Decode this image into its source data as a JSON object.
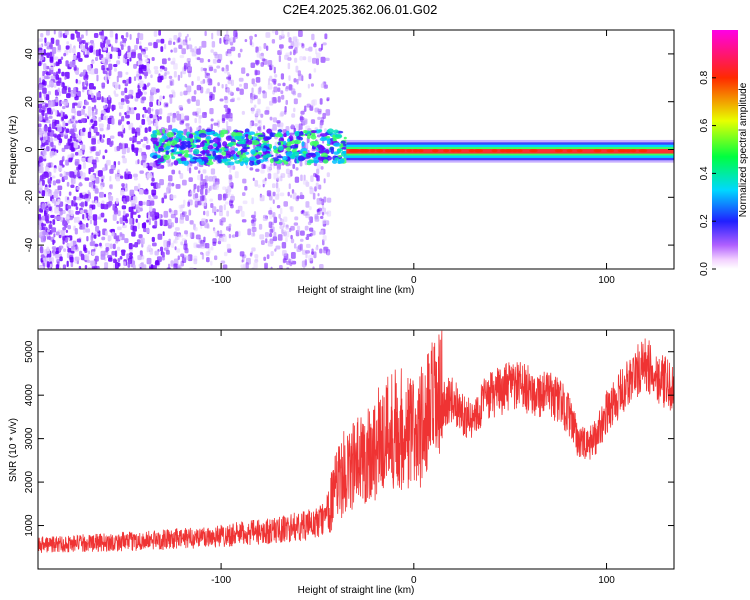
{
  "title": "C2E4.2025.362.06.01.G02",
  "chart_data": [
    {
      "type": "heatmap",
      "name": "spectrogram",
      "xlabel": "Height of straight line (km)",
      "ylabel": "Frequency (Hz)",
      "xlim": [
        -195,
        135
      ],
      "ylim": [
        -50,
        50
      ],
      "xticks": [
        -100,
        0,
        100
      ],
      "yticks": [
        -40,
        -20,
        0,
        20,
        40
      ],
      "colorbar": {
        "label": "Normalized spectral amplitude",
        "range": [
          0,
          1
        ],
        "ticks": [
          "0.0",
          "0.2",
          "0.4",
          "0.6",
          "0.8"
        ]
      },
      "description": "Scattered low-amplitude purple noise for heights below about -45 km, a concentrated signal band near 0 Hz that strengthens from -130 km upward, becoming a continuous narrow high-amplitude line from about -35 km to 135 km."
    },
    {
      "type": "line",
      "name": "snr",
      "xlabel": "Height of straight line (km)",
      "ylabel": "SNR (10 * v/v)",
      "xlim": [
        -195,
        135
      ],
      "ylim": [
        0,
        5500
      ],
      "xticks": [
        -100,
        0,
        100
      ],
      "yticks": [
        1000,
        2000,
        3000,
        4000,
        5000
      ],
      "color": "#ef3333",
      "series": [
        {
          "name": "SNR",
          "x": [
            -195,
            -180,
            -160,
            -140,
            -120,
            -100,
            -80,
            -70,
            -60,
            -50,
            -45,
            -40,
            -35,
            -30,
            -25,
            -20,
            -15,
            -10,
            -5,
            0,
            5,
            10,
            15,
            20,
            25,
            30,
            35,
            40,
            45,
            50,
            55,
            60,
            65,
            70,
            75,
            80,
            85,
            90,
            95,
            100,
            105,
            110,
            115,
            120,
            125,
            130,
            135
          ],
          "y": [
            560,
            580,
            610,
            650,
            700,
            770,
            850,
            900,
            980,
            1050,
            1300,
            1900,
            2300,
            2400,
            2600,
            2800,
            3100,
            3300,
            3200,
            3100,
            3300,
            3700,
            3800,
            3900,
            3600,
            3400,
            3800,
            4000,
            4100,
            4200,
            4200,
            4100,
            4050,
            4000,
            3900,
            3600,
            3000,
            2800,
            3100,
            3600,
            3900,
            4200,
            4500,
            4700,
            4500,
            4300,
            4100
          ]
        }
      ]
    }
  ]
}
